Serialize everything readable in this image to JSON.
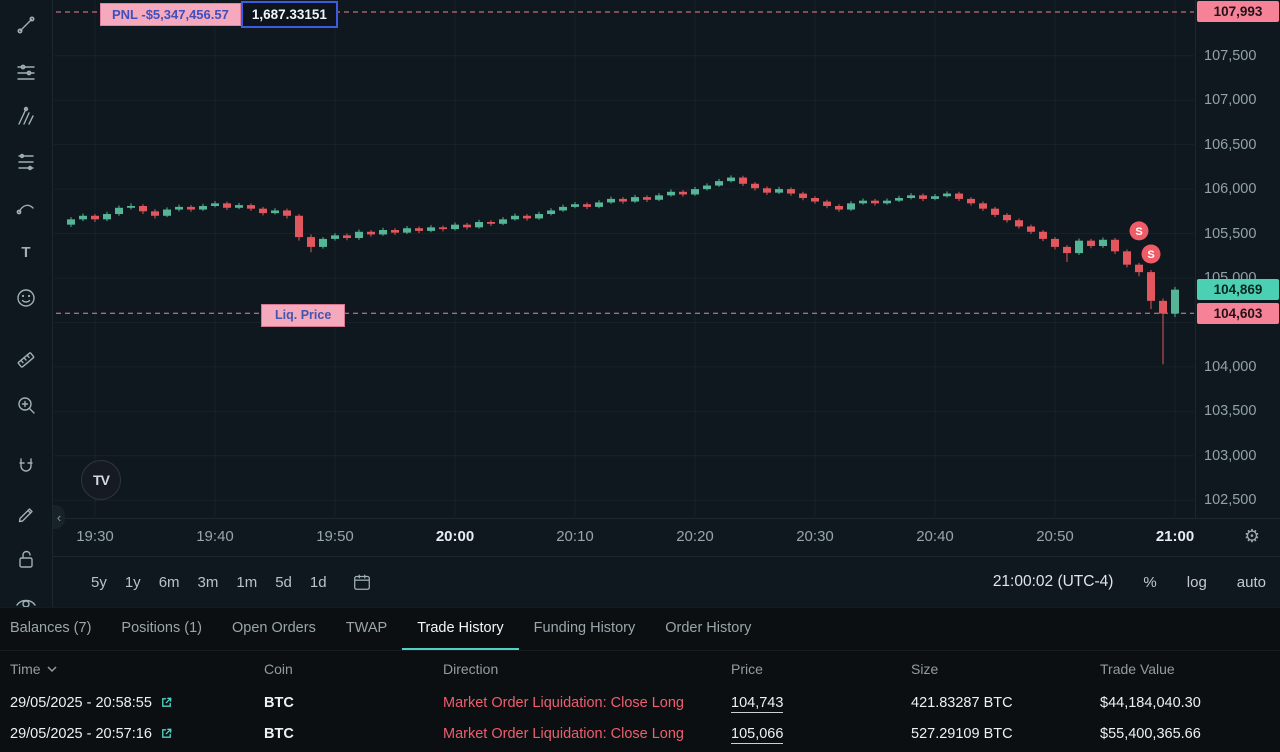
{
  "colors": {
    "accent_teal": "#50d2c1",
    "candle_up": "#56b597",
    "candle_down": "#e2565e",
    "pink_line": "#f37f95",
    "pink_label_bg": "#f58296",
    "teal_label_bg": "#4cd0b4",
    "marker_red": "#ef5b66",
    "direction_red": "#ef5e6e",
    "pnl_text_blue": "#3c50c0"
  },
  "drawing_toolbar": {
    "icons": [
      "trend-line",
      "horizontal-lines",
      "pitchfork",
      "fib-retracement",
      "brush",
      "text",
      "emoji",
      "ruler",
      "zoom",
      "magnet",
      "edit",
      "lock",
      "eye"
    ]
  },
  "chart_data": {
    "type": "candlestick",
    "interval": "1m",
    "description": "BTC perpetual 1-minute candles 19:28-21:00, price falling into long liquidation",
    "first_candle_time": "19:28",
    "candles": [
      [
        105600,
        105685,
        105575,
        105660
      ],
      [
        105660,
        105725,
        105640,
        105700
      ],
      [
        105700,
        105720,
        105630,
        105660
      ],
      [
        105660,
        105745,
        105640,
        105720
      ],
      [
        105720,
        105815,
        105700,
        105790
      ],
      [
        105790,
        105840,
        105770,
        105810
      ],
      [
        105810,
        105830,
        105720,
        105750
      ],
      [
        105750,
        105775,
        105670,
        105700
      ],
      [
        105700,
        105795,
        105685,
        105770
      ],
      [
        105770,
        105825,
        105750,
        105800
      ],
      [
        105800,
        105820,
        105745,
        105770
      ],
      [
        105770,
        105835,
        105755,
        105810
      ],
      [
        105810,
        105865,
        105795,
        105840
      ],
      [
        105840,
        105860,
        105765,
        105790
      ],
      [
        105790,
        105845,
        105775,
        105820
      ],
      [
        105820,
        105840,
        105755,
        105780
      ],
      [
        105780,
        105800,
        105705,
        105730
      ],
      [
        105730,
        105785,
        105715,
        105760
      ],
      [
        105760,
        105780,
        105670,
        105700
      ],
      [
        105700,
        105720,
        105420,
        105460
      ],
      [
        105460,
        105490,
        105290,
        105350
      ],
      [
        105350,
        105460,
        105330,
        105440
      ],
      [
        105440,
        105505,
        105420,
        105480
      ],
      [
        105480,
        105500,
        105425,
        105450
      ],
      [
        105450,
        105545,
        105430,
        105520
      ],
      [
        105520,
        105540,
        105465,
        105490
      ],
      [
        105490,
        105565,
        105475,
        105540
      ],
      [
        105540,
        105560,
        105485,
        105510
      ],
      [
        105510,
        105585,
        105495,
        105560
      ],
      [
        105560,
        105580,
        105505,
        105530
      ],
      [
        105530,
        105595,
        105515,
        105570
      ],
      [
        105570,
        105590,
        105525,
        105550
      ],
      [
        105550,
        105625,
        105535,
        105600
      ],
      [
        105600,
        105620,
        105545,
        105570
      ],
      [
        105570,
        105655,
        105555,
        105630
      ],
      [
        105630,
        105650,
        105585,
        105610
      ],
      [
        105610,
        105685,
        105595,
        105660
      ],
      [
        105660,
        105725,
        105645,
        105700
      ],
      [
        105700,
        105720,
        105645,
        105670
      ],
      [
        105670,
        105745,
        105655,
        105720
      ],
      [
        105720,
        105785,
        105705,
        105760
      ],
      [
        105760,
        105825,
        105745,
        105800
      ],
      [
        105800,
        105855,
        105785,
        105830
      ],
      [
        105830,
        105850,
        105775,
        105800
      ],
      [
        105800,
        105875,
        105785,
        105850
      ],
      [
        105850,
        105915,
        105835,
        105890
      ],
      [
        105890,
        105910,
        105835,
        105860
      ],
      [
        105860,
        105935,
        105845,
        105910
      ],
      [
        105910,
        105930,
        105855,
        105880
      ],
      [
        105880,
        105955,
        105865,
        105930
      ],
      [
        105930,
        105995,
        105915,
        105970
      ],
      [
        105970,
        105990,
        105915,
        105940
      ],
      [
        105940,
        106025,
        105925,
        106000
      ],
      [
        106000,
        106065,
        105985,
        106040
      ],
      [
        106040,
        106115,
        106025,
        106090
      ],
      [
        106090,
        106155,
        106075,
        106130
      ],
      [
        106130,
        106150,
        106035,
        106060
      ],
      [
        106060,
        106080,
        105985,
        106010
      ],
      [
        106010,
        106030,
        105935,
        105960
      ],
      [
        105960,
        106025,
        105945,
        106000
      ],
      [
        106000,
        106020,
        105925,
        105950
      ],
      [
        105950,
        105970,
        105875,
        105900
      ],
      [
        105900,
        105920,
        105835,
        105860
      ],
      [
        105860,
        105880,
        105785,
        105810
      ],
      [
        105810,
        105830,
        105745,
        105770
      ],
      [
        105770,
        105865,
        105755,
        105840
      ],
      [
        105840,
        105895,
        105825,
        105870
      ],
      [
        105870,
        105890,
        105815,
        105840
      ],
      [
        105840,
        105895,
        105825,
        105870
      ],
      [
        105870,
        105925,
        105855,
        105900
      ],
      [
        105900,
        105955,
        105885,
        105930
      ],
      [
        105930,
        105950,
        105865,
        105890
      ],
      [
        105890,
        105945,
        105875,
        105920
      ],
      [
        105920,
        105975,
        105905,
        105950
      ],
      [
        105950,
        105970,
        105865,
        105890
      ],
      [
        105890,
        105910,
        105815,
        105840
      ],
      [
        105840,
        105860,
        105755,
        105780
      ],
      [
        105780,
        105800,
        105685,
        105710
      ],
      [
        105710,
        105730,
        105625,
        105650
      ],
      [
        105650,
        105670,
        105555,
        105580
      ],
      [
        105580,
        105600,
        105495,
        105520
      ],
      [
        105520,
        105540,
        105415,
        105440
      ],
      [
        105440,
        105460,
        105320,
        105350
      ],
      [
        105350,
        105370,
        105180,
        105280
      ],
      [
        105280,
        105445,
        105260,
        105420
      ],
      [
        105420,
        105440,
        105335,
        105360
      ],
      [
        105360,
        105455,
        105340,
        105430
      ],
      [
        105430,
        105450,
        105270,
        105300
      ],
      [
        105300,
        105320,
        105120,
        105150
      ],
      [
        105150,
        105170,
        105020,
        105066
      ],
      [
        105066,
        105090,
        104650,
        104743
      ],
      [
        104743,
        104770,
        104030,
        104600
      ],
      [
        104600,
        104900,
        104560,
        104869
      ]
    ],
    "time_ticks": [
      {
        "label": "19:30",
        "candle_index": 2,
        "bold": false
      },
      {
        "label": "19:40",
        "candle_index": 12,
        "bold": false
      },
      {
        "label": "19:50",
        "candle_index": 22,
        "bold": false
      },
      {
        "label": "20:00",
        "candle_index": 32,
        "bold": true
      },
      {
        "label": "20:10",
        "candle_index": 42,
        "bold": false
      },
      {
        "label": "20:20",
        "candle_index": 52,
        "bold": false
      },
      {
        "label": "20:30",
        "candle_index": 62,
        "bold": false
      },
      {
        "label": "20:40",
        "candle_index": 72,
        "bold": false
      },
      {
        "label": "20:50",
        "candle_index": 82,
        "bold": false
      },
      {
        "label": "21:00",
        "candle_index": 92,
        "bold": true
      }
    ],
    "price_axis": {
      "ticks": [
        {
          "label": "107,500",
          "price": 107500
        },
        {
          "label": "107,000",
          "price": 107000
        },
        {
          "label": "106,500",
          "price": 106500
        },
        {
          "label": "106,000",
          "price": 106000
        },
        {
          "label": "105,500",
          "price": 105500
        },
        {
          "label": "105,000",
          "price": 105000
        },
        {
          "label": "104,000",
          "price": 104000
        },
        {
          "label": "103,500",
          "price": 103500
        },
        {
          "label": "103,000",
          "price": 103000
        },
        {
          "label": "102,500",
          "price": 102500
        }
      ],
      "grid_prices": [
        107500,
        107000,
        106500,
        106000,
        105500,
        105000,
        104500,
        104000,
        103500,
        103000,
        102500
      ]
    },
    "entry_line": {
      "price": 107993,
      "price_label": "107,993",
      "pnl_label": "PNL -$5,347,456.57",
      "size_label": "1,687.33151"
    },
    "liq_line": {
      "price": 104603,
      "price_label": "104,603",
      "tag_label": "Liq. Price"
    },
    "last_price": {
      "price": 104869,
      "label": "104,869"
    },
    "sell_markers": [
      {
        "candle_index": 89,
        "price": 105530,
        "label": "S"
      },
      {
        "candle_index": 90,
        "price": 105270,
        "label": "S"
      }
    ],
    "watermark_logo_text": "TV"
  },
  "bottom_toolbar": {
    "ranges": [
      "5y",
      "1y",
      "6m",
      "3m",
      "1m",
      "5d",
      "1d"
    ],
    "clock_label": "21:00:02 (UTC-4)",
    "scale_buttons": [
      "%",
      "log",
      "auto"
    ]
  },
  "bottom_panel": {
    "tabs": [
      {
        "label": "Balances (7)",
        "active": false
      },
      {
        "label": "Positions (1)",
        "active": false
      },
      {
        "label": "Open Orders",
        "active": false
      },
      {
        "label": "TWAP",
        "active": false
      },
      {
        "label": "Trade History",
        "active": true
      },
      {
        "label": "Funding History",
        "active": false
      },
      {
        "label": "Order History",
        "active": false
      }
    ],
    "table": {
      "columns": [
        "Time",
        "Coin",
        "Direction",
        "Price",
        "Size",
        "Trade Value"
      ],
      "rows": [
        {
          "time": "29/05/2025 - 20:58:55",
          "coin": "BTC",
          "direction": "Market Order Liquidation: Close Long",
          "price": "104,743",
          "size": "421.83287 BTC",
          "trade_value": "$44,184,040.30"
        },
        {
          "time": "29/05/2025 - 20:57:16",
          "coin": "BTC",
          "direction": "Market Order Liquidation: Close Long",
          "price": "105,066",
          "size": "527.29109 BTC",
          "trade_value": "$55,400,365.66"
        }
      ]
    }
  }
}
